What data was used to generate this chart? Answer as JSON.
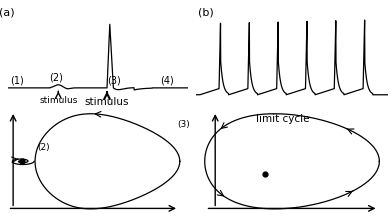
{
  "fig_width": 3.92,
  "fig_height": 2.18,
  "bg_color": "#ffffff",
  "line_color": "#000000",
  "panel_a_label": "(a)",
  "panel_b_label": "(b)",
  "label1": "(1)",
  "label2": "(2)",
  "label3": "(3)",
  "label4": "(4)",
  "stimulus1": "stimulus",
  "stimulus2": "stimulus",
  "limit_cycle_label": "limit cycle"
}
